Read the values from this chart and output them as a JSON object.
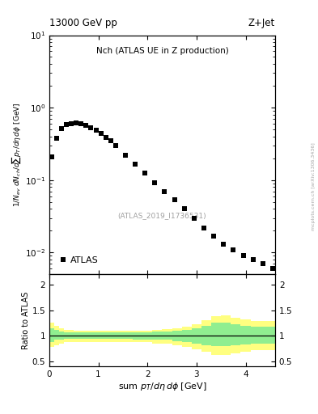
{
  "title_left": "13000 GeV pp",
  "title_right": "Z+Jet",
  "plot_title": "Nch (ATLAS UE in Z production)",
  "watermark": "(ATLAS_2019_I1736531)",
  "ylabel_main": "1/N$_{ev}$ dN$_{ch}$/dsum p$_T$/dη dφ [GeV]",
  "xlabel": "sum p$_T$/dη dφ [GeV]",
  "ylabel_ratio": "Ratio to ATLAS",
  "atlas_x": [
    0.05,
    0.15,
    0.25,
    0.35,
    0.45,
    0.55,
    0.65,
    0.75,
    0.85,
    0.95,
    1.05,
    1.15,
    1.25,
    1.35,
    1.55,
    1.75,
    1.95,
    2.15,
    2.35,
    2.55,
    2.75,
    2.95,
    3.15,
    3.35,
    3.55,
    3.75,
    3.95,
    4.15,
    4.35,
    4.55
  ],
  "atlas_y": [
    0.21,
    0.38,
    0.52,
    0.58,
    0.6,
    0.61,
    0.6,
    0.57,
    0.53,
    0.49,
    0.44,
    0.39,
    0.35,
    0.3,
    0.22,
    0.165,
    0.125,
    0.093,
    0.07,
    0.053,
    0.04,
    0.03,
    0.022,
    0.017,
    0.013,
    0.011,
    0.009,
    0.008,
    0.007,
    0.006
  ],
  "ratio_x_edges": [
    0.0,
    0.1,
    0.2,
    0.3,
    0.4,
    0.5,
    0.6,
    0.7,
    0.8,
    0.9,
    1.0,
    1.1,
    1.2,
    1.3,
    1.5,
    1.7,
    1.9,
    2.1,
    2.3,
    2.5,
    2.7,
    2.9,
    3.1,
    3.3,
    3.5,
    3.7,
    3.9,
    4.1,
    4.3,
    4.5,
    4.6
  ],
  "green_upper": [
    1.15,
    1.12,
    1.08,
    1.07,
    1.06,
    1.06,
    1.06,
    1.06,
    1.06,
    1.06,
    1.06,
    1.06,
    1.06,
    1.06,
    1.06,
    1.06,
    1.06,
    1.08,
    1.08,
    1.1,
    1.12,
    1.15,
    1.2,
    1.25,
    1.25,
    1.22,
    1.2,
    1.18,
    1.18,
    1.18
  ],
  "green_lower": [
    0.88,
    0.92,
    0.93,
    0.94,
    0.94,
    0.94,
    0.94,
    0.94,
    0.94,
    0.94,
    0.94,
    0.94,
    0.94,
    0.94,
    0.94,
    0.93,
    0.93,
    0.92,
    0.92,
    0.9,
    0.88,
    0.85,
    0.82,
    0.8,
    0.8,
    0.82,
    0.83,
    0.85,
    0.85,
    0.85
  ],
  "yellow_upper": [
    1.25,
    1.2,
    1.14,
    1.12,
    1.11,
    1.1,
    1.1,
    1.1,
    1.1,
    1.1,
    1.1,
    1.1,
    1.1,
    1.1,
    1.1,
    1.1,
    1.1,
    1.12,
    1.13,
    1.15,
    1.18,
    1.22,
    1.3,
    1.38,
    1.4,
    1.35,
    1.32,
    1.28,
    1.28,
    1.28
  ],
  "yellow_lower": [
    0.78,
    0.82,
    0.85,
    0.87,
    0.88,
    0.88,
    0.88,
    0.88,
    0.88,
    0.88,
    0.88,
    0.88,
    0.88,
    0.88,
    0.88,
    0.87,
    0.87,
    0.85,
    0.84,
    0.82,
    0.78,
    0.74,
    0.68,
    0.62,
    0.62,
    0.66,
    0.68,
    0.72,
    0.72,
    0.72
  ],
  "green_color": "#90EE90",
  "yellow_color": "#FFFF80",
  "marker_color": "black",
  "marker_size": 4,
  "ylim_main_log": [
    0.005,
    10
  ],
  "ylim_ratio": [
    0.4,
    2.2
  ],
  "xlim": [
    0.0,
    4.6
  ],
  "side_watermark": "mcplots.cern.ch [arXiv:1306.3436]"
}
